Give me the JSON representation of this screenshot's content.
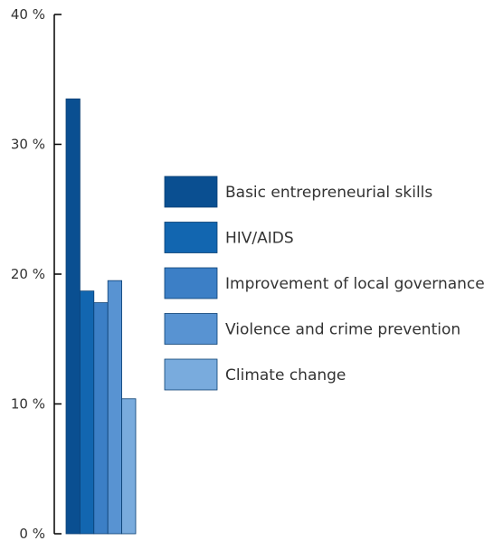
{
  "chart_data": {
    "type": "bar",
    "categories": [
      "Basic entrepreneurial skills",
      "HIV/AIDS",
      "Improvement of local governance",
      "Violence and crime prevention",
      "Climate change"
    ],
    "values": [
      33.5,
      18.7,
      17.8,
      19.5,
      10.4
    ],
    "y_ticks": [
      "40 %",
      "30 %",
      "20 %",
      "10 %",
      "0 %"
    ],
    "y_tick_values": [
      40,
      30,
      20,
      10,
      0
    ],
    "ylim": [
      0,
      40
    ],
    "title": "",
    "xlabel": "",
    "ylabel": "",
    "grid": false,
    "legend_position": "right",
    "colors": [
      "#0a4f91",
      "#1266b0",
      "#3c7fc6",
      "#5893d2",
      "#79abdd"
    ]
  }
}
